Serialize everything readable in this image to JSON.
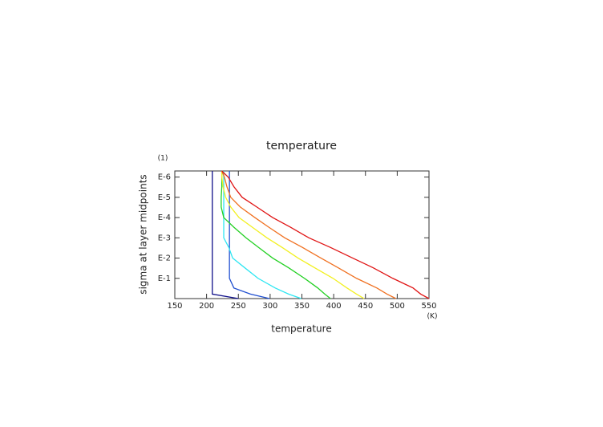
{
  "chart_data": {
    "type": "line",
    "title": "temperature",
    "x_label": "temperature",
    "y_label": "sigma at layer midpoints",
    "x_unit": "(K)",
    "y_unit": "(1)",
    "xlim": [
      150,
      550
    ],
    "xticks": [
      150,
      200,
      250,
      300,
      350,
      400,
      450,
      500,
      550
    ],
    "ylim": [
      1,
      5e-07
    ],
    "ylog": true,
    "yticks": [
      {
        "value": 1e-06,
        "label": "E-6"
      },
      {
        "value": 1e-05,
        "label": "E-5"
      },
      {
        "value": 0.0001,
        "label": "E-4"
      },
      {
        "value": 0.001,
        "label": "E-3"
      },
      {
        "value": 0.01,
        "label": "E-2"
      },
      {
        "value": 0.1,
        "label": "E-1"
      }
    ],
    "y": [
      5e-07,
      1e-06,
      3e-06,
      1e-05,
      3e-05,
      0.0001,
      0.0003,
      0.001,
      0.003,
      0.01,
      0.03,
      0.1,
      0.3,
      0.6,
      1
    ],
    "series": [
      {
        "color": "#10108a",
        "values": [
          209,
          209,
          209,
          209,
          209,
          209,
          209,
          209,
          209,
          209,
          209,
          209,
          209,
          209,
          250
        ]
      },
      {
        "color": "#1f4fd0",
        "values": [
          236,
          236,
          236,
          236,
          236,
          236,
          236,
          236,
          236,
          236,
          236,
          236,
          243,
          269,
          299
        ]
      },
      {
        "color": "#2ee6f2",
        "values": [
          227,
          227,
          227,
          227,
          227,
          227,
          227,
          227,
          235,
          241,
          260,
          281,
          308,
          329,
          349
        ]
      },
      {
        "color": "#22d022",
        "values": [
          224,
          224,
          224,
          223,
          223,
          227,
          243,
          262,
          282,
          304,
          329,
          354,
          375,
          386,
          395
        ]
      },
      {
        "color": "#f2f020",
        "values": [
          224,
          224,
          226,
          230,
          238,
          251,
          272,
          295,
          319,
          344,
          370,
          399,
          421,
          436,
          448
        ]
      },
      {
        "color": "#f07020",
        "values": [
          224,
          228,
          232,
          238,
          253,
          276,
          298,
          323,
          351,
          380,
          407,
          436,
          468,
          484,
          498
        ]
      },
      {
        "color": "#e01414",
        "values": [
          224,
          234,
          243,
          256,
          279,
          304,
          332,
          361,
          395,
          430,
          462,
          493,
          525,
          537,
          550
        ]
      }
    ]
  }
}
